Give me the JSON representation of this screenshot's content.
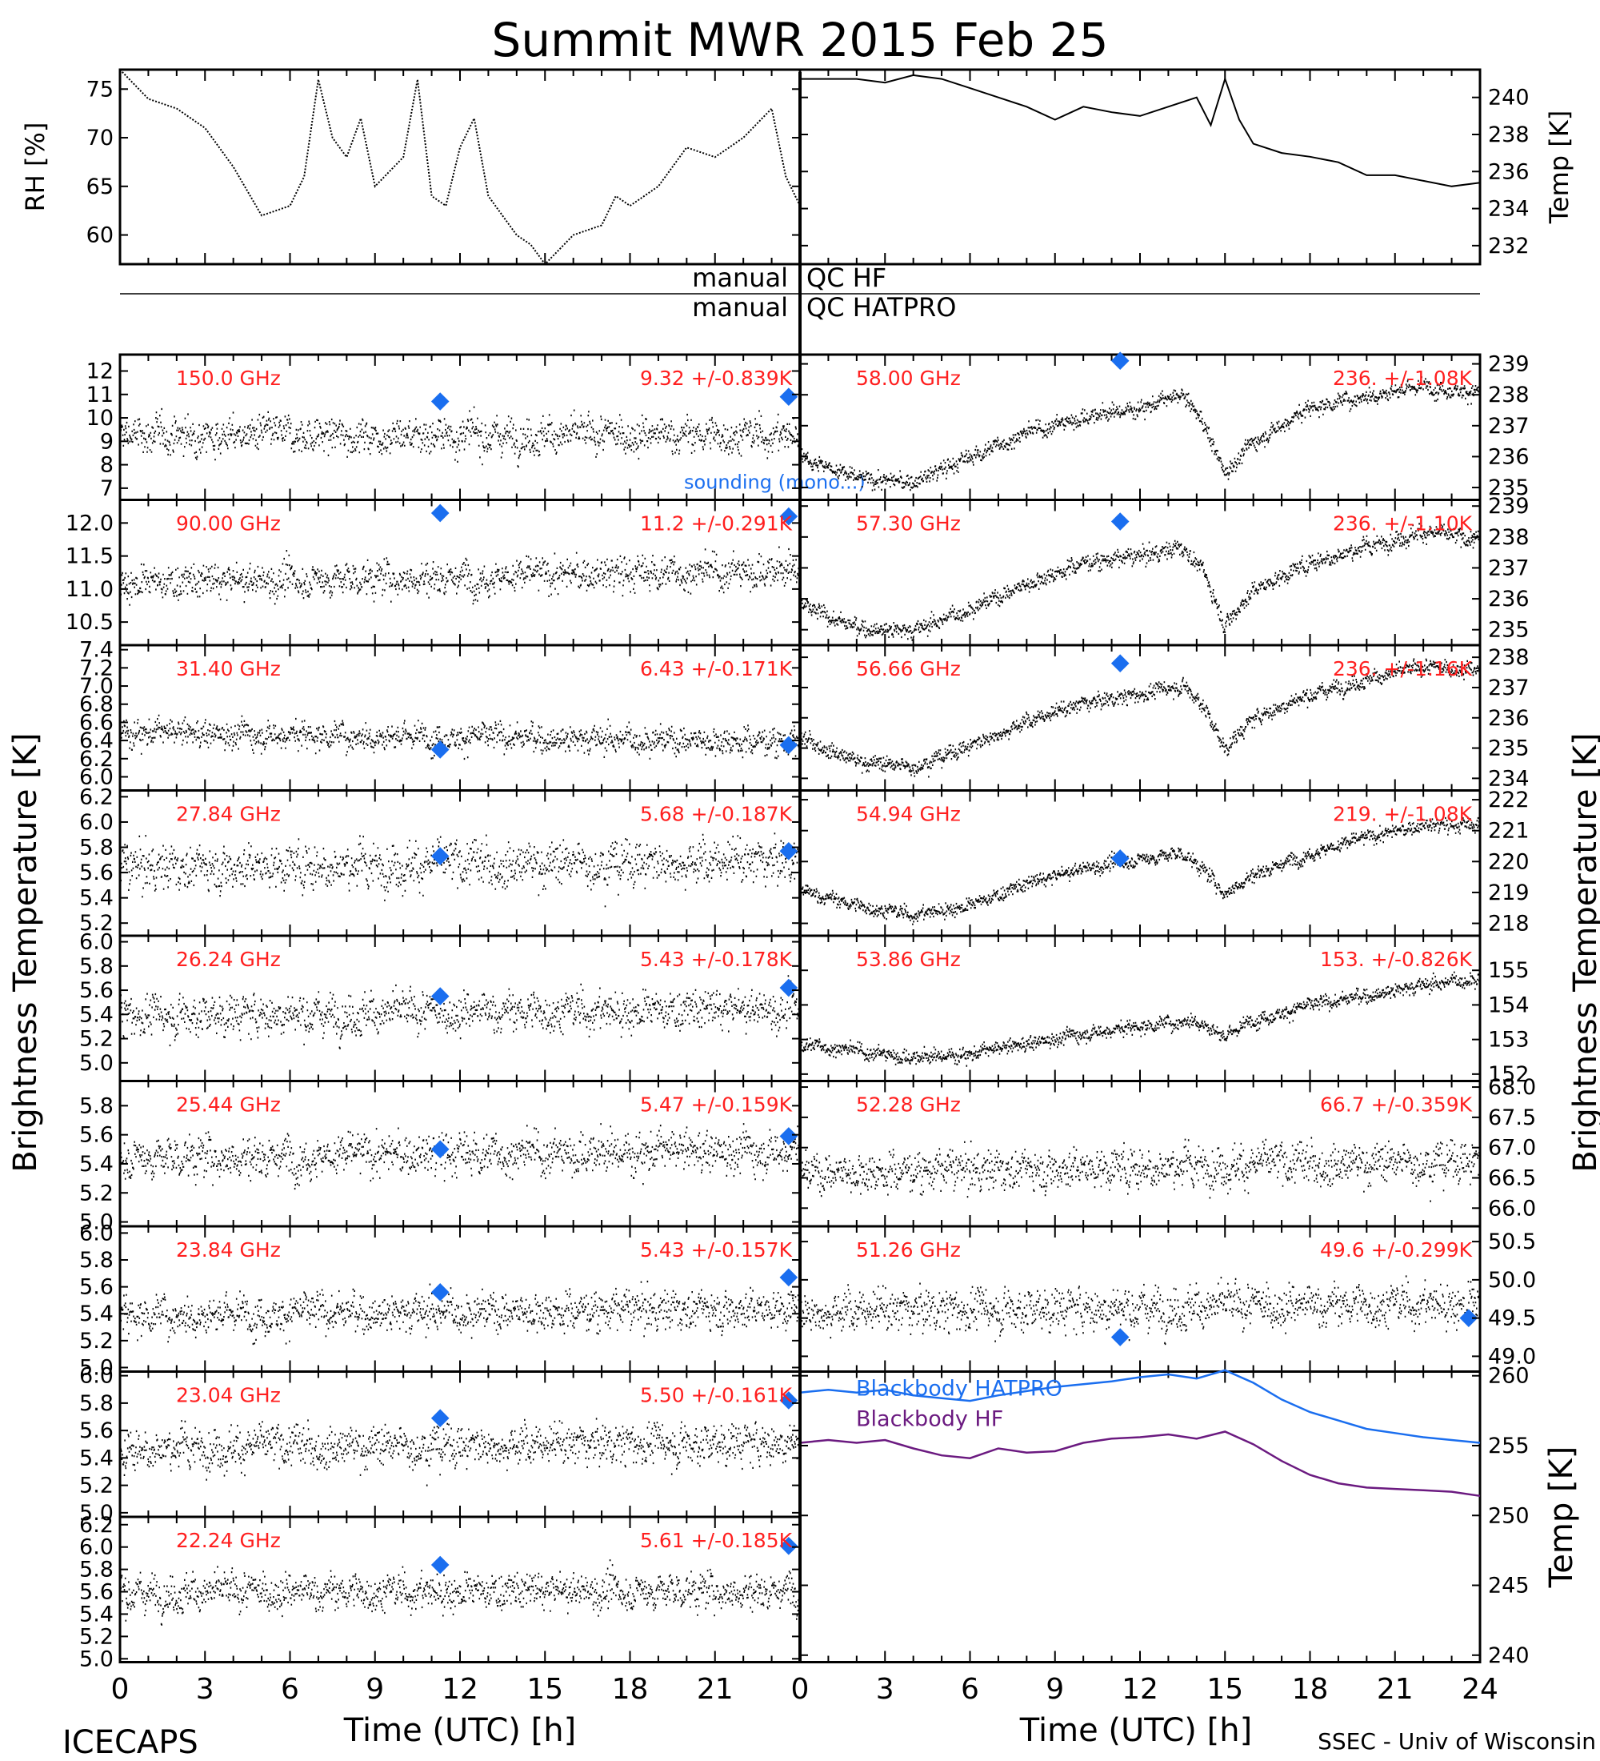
{
  "title": "Summit MWR 2015 Feb 25",
  "footer": {
    "left": "ICECAPS",
    "right": "SSEC - Univ of Wisconsin"
  },
  "colors": {
    "trace": "#000000",
    "label": "#ff1f1f",
    "sounding": "#1a6eef",
    "bb_hatpro": "#1a6eef",
    "bb_hf": "#6b1a80"
  },
  "qc": {
    "left1": "manual",
    "right1": "QC HF",
    "left2": "manual",
    "right2": "QC HATPRO"
  },
  "chart_data": [
    {
      "id": "met_rh",
      "type": "line",
      "ylabel": "RH [%]",
      "xlim": [
        0,
        24
      ],
      "ylim": [
        57,
        77
      ],
      "yticks": [
        "60",
        "65",
        "70",
        "75"
      ],
      "x": [
        0,
        1,
        2,
        3,
        4,
        5,
        6,
        6.5,
        7,
        7.5,
        8,
        8.5,
        9,
        10,
        10.5,
        11,
        11.5,
        12,
        12.5,
        13,
        13.5,
        14,
        14.5,
        15,
        16,
        17,
        17.5,
        18,
        19,
        20,
        21,
        22,
        23,
        23.5,
        24
      ],
      "values": [
        77,
        74,
        73,
        71,
        67,
        62,
        63,
        66,
        76,
        70,
        68,
        72,
        65,
        68,
        76,
        64,
        63,
        69,
        72,
        64,
        62,
        60,
        59,
        57,
        60,
        61,
        64,
        63,
        65,
        69,
        68,
        70,
        73,
        66,
        63
      ]
    },
    {
      "id": "met_temp",
      "type": "line",
      "ylabel": "Temp [K]",
      "xlim": [
        0,
        24
      ],
      "ylim": [
        231,
        241.5
      ],
      "yticks": [
        "232",
        "234",
        "236",
        "238",
        "240"
      ],
      "x": [
        0,
        1,
        2,
        3,
        4,
        5,
        6,
        7,
        8,
        9,
        10,
        11,
        12,
        13,
        14,
        14.5,
        15,
        15.5,
        16,
        17,
        18,
        19,
        20,
        21,
        22,
        23,
        24
      ],
      "values": [
        241,
        241,
        241,
        240.8,
        241.2,
        241,
        240.5,
        240,
        239.5,
        238.8,
        239.5,
        239.2,
        239,
        239.5,
        240,
        238.5,
        241,
        238.8,
        237.5,
        237,
        236.8,
        236.5,
        235.8,
        235.8,
        235.5,
        235.2,
        235.4
      ]
    },
    {
      "id": "p150",
      "type": "scatter",
      "freq": "150.0 GHz",
      "stat": "9.32 +/-0.839K",
      "ylim": [
        6.5,
        12.7
      ],
      "yticks": [
        "7",
        "8",
        "9",
        "10",
        "11",
        "12"
      ],
      "mean": [
        9.3,
        9.3
      ],
      "noise": 0.84,
      "sounding": [
        [
          11.3,
          10.7
        ],
        [
          23.6,
          10.9
        ]
      ],
      "extra": "sounding (mono...)"
    },
    {
      "id": "p90",
      "type": "scatter",
      "freq": "90.00 GHz",
      "stat": "11.2 +/-0.291K",
      "ylim": [
        10.15,
        12.35
      ],
      "yticks": [
        "10.5",
        "11.0",
        "11.5",
        "12.0"
      ],
      "mean": [
        11.1,
        11.3
      ],
      "noise": 0.29,
      "sounding": [
        [
          11.3,
          12.15
        ],
        [
          23.6,
          12.1
        ]
      ]
    },
    {
      "id": "p31",
      "type": "scatter",
      "freq": "31.40 GHz",
      "stat": "6.43 +/-0.171K",
      "ylim": [
        5.85,
        7.45
      ],
      "yticks": [
        "6.0",
        "6.2",
        "6.4",
        "6.6",
        "6.8",
        "7.0",
        "7.2",
        "7.4"
      ],
      "mean": [
        6.5,
        6.4
      ],
      "noise": 0.17,
      "sounding": [
        [
          11.3,
          6.3
        ],
        [
          23.6,
          6.35
        ]
      ]
    },
    {
      "id": "p2784",
      "type": "scatter",
      "freq": "27.84 GHz",
      "stat": "5.68 +/-0.187K",
      "ylim": [
        5.1,
        6.25
      ],
      "yticks": [
        "5.2",
        "5.4",
        "5.6",
        "5.8",
        "6.0",
        "6.2"
      ],
      "mean": [
        5.65,
        5.7
      ],
      "noise": 0.19,
      "sounding": [
        [
          11.3,
          5.73
        ],
        [
          23.6,
          5.77
        ]
      ]
    },
    {
      "id": "p2624",
      "type": "scatter",
      "freq": "26.24 GHz",
      "stat": "5.43 +/-0.178K",
      "ylim": [
        4.85,
        6.05
      ],
      "yticks": [
        "5.0",
        "5.2",
        "5.4",
        "5.6",
        "5.8",
        "6.0"
      ],
      "mean": [
        5.4,
        5.45
      ],
      "noise": 0.18,
      "sounding": [
        [
          11.3,
          5.55
        ],
        [
          23.6,
          5.62
        ]
      ]
    },
    {
      "id": "p2544",
      "type": "scatter",
      "freq": "25.44 GHz",
      "stat": "5.47 +/-0.159K",
      "ylim": [
        4.97,
        5.97
      ],
      "yticks": [
        "5.0",
        "5.2",
        "5.4",
        "5.6",
        "5.8"
      ],
      "mean": [
        5.45,
        5.5
      ],
      "noise": 0.16,
      "sounding": [
        [
          11.3,
          5.5
        ],
        [
          23.6,
          5.59
        ]
      ]
    },
    {
      "id": "p2384",
      "type": "scatter",
      "freq": "23.84 GHz",
      "stat": "5.43 +/-0.157K",
      "ylim": [
        4.97,
        6.05
      ],
      "yticks": [
        "5.0",
        "5.2",
        "5.4",
        "5.6",
        "5.8",
        "6.0"
      ],
      "mean": [
        5.4,
        5.45
      ],
      "noise": 0.16,
      "sounding": [
        [
          11.3,
          5.56
        ],
        [
          23.6,
          5.67
        ]
      ]
    },
    {
      "id": "p2304",
      "type": "scatter",
      "freq": "23.04 GHz",
      "stat": "5.50 +/-0.161K",
      "ylim": [
        4.97,
        6.03
      ],
      "yticks": [
        "5.0",
        "5.2",
        "5.4",
        "5.6",
        "5.8",
        "6.0"
      ],
      "mean": [
        5.48,
        5.52
      ],
      "noise": 0.16,
      "sounding": [
        [
          11.3,
          5.69
        ],
        [
          23.6,
          5.82
        ]
      ]
    },
    {
      "id": "p2224",
      "type": "scatter",
      "freq": "22.24 GHz",
      "stat": "5.61 +/-0.185K",
      "ylim": [
        4.97,
        6.27
      ],
      "yticks": [
        "5.0",
        "5.2",
        "5.4",
        "5.6",
        "5.8",
        "6.0",
        "6.2"
      ],
      "mean": [
        5.6,
        5.62
      ],
      "noise": 0.18,
      "sounding": [
        [
          11.3,
          5.84
        ],
        [
          23.6,
          6.01
        ]
      ]
    },
    {
      "id": "p58",
      "type": "scatter",
      "freq": "58.00 GHz",
      "stat": "236. +/-1.08K",
      "ylim": [
        234.6,
        239.3
      ],
      "yticks": [
        "235",
        "236",
        "237",
        "238",
        "239"
      ],
      "trend": [
        [
          0,
          236.1
        ],
        [
          2,
          235.3
        ],
        [
          4,
          235.2
        ],
        [
          6,
          236
        ],
        [
          8,
          236.8
        ],
        [
          10,
          237.3
        ],
        [
          12,
          237.6
        ],
        [
          13.5,
          238
        ],
        [
          14.2,
          237.2
        ],
        [
          15,
          235.5
        ],
        [
          16,
          236.5
        ],
        [
          18,
          237.6
        ],
        [
          20,
          238
        ],
        [
          22,
          238.3
        ],
        [
          24,
          238.1
        ]
      ],
      "noise": 0.3,
      "sounding": [
        [
          11.3,
          239.1
        ]
      ]
    },
    {
      "id": "p573",
      "type": "scatter",
      "freq": "57.30 GHz",
      "stat": "236. +/-1.10K",
      "ylim": [
        234.5,
        239.2
      ],
      "yticks": [
        "235",
        "236",
        "237",
        "238",
        "239"
      ],
      "trend": [
        [
          0,
          235.8
        ],
        [
          2,
          235.1
        ],
        [
          4,
          235
        ],
        [
          6,
          235.7
        ],
        [
          8,
          236.5
        ],
        [
          10,
          237.2
        ],
        [
          12,
          237.4
        ],
        [
          13.5,
          237.7
        ],
        [
          14.2,
          237
        ],
        [
          15,
          235.2
        ],
        [
          16,
          236.3
        ],
        [
          18,
          237.2
        ],
        [
          20,
          237.7
        ],
        [
          22,
          238.2
        ],
        [
          24,
          237.9
        ]
      ],
      "noise": 0.3,
      "sounding": [
        [
          11.3,
          238.5
        ]
      ]
    },
    {
      "id": "p5666",
      "type": "scatter",
      "freq": "56.66 GHz",
      "stat": "236. +/-1.16K",
      "ylim": [
        233.6,
        238.4
      ],
      "yticks": [
        "234",
        "235",
        "236",
        "237",
        "238"
      ],
      "trend": [
        [
          0,
          235.4
        ],
        [
          2,
          234.6
        ],
        [
          4,
          234.4
        ],
        [
          6,
          235.1
        ],
        [
          8,
          235.9
        ],
        [
          10,
          236.5
        ],
        [
          12,
          236.8
        ],
        [
          13.5,
          237.1
        ],
        [
          14.2,
          236.5
        ],
        [
          15,
          235
        ],
        [
          16,
          236
        ],
        [
          18,
          236.8
        ],
        [
          20,
          237.3
        ],
        [
          22,
          237.7
        ],
        [
          24,
          237.6
        ]
      ],
      "noise": 0.28,
      "sounding": [
        [
          11.3,
          237.8
        ]
      ]
    },
    {
      "id": "p5494",
      "type": "scatter",
      "freq": "54.94 GHz",
      "stat": "219. +/-1.08K",
      "ylim": [
        217.6,
        222.3
      ],
      "yticks": [
        "218",
        "219",
        "220",
        "221",
        "222"
      ],
      "trend": [
        [
          0,
          219.1
        ],
        [
          2,
          218.6
        ],
        [
          4,
          218.3
        ],
        [
          6,
          218.6
        ],
        [
          8,
          219.3
        ],
        [
          10,
          219.8
        ],
        [
          12,
          220.1
        ],
        [
          13.5,
          220.3
        ],
        [
          14.2,
          219.8
        ],
        [
          15,
          219
        ],
        [
          16,
          219.6
        ],
        [
          18,
          220.3
        ],
        [
          20,
          220.8
        ],
        [
          22,
          221.2
        ],
        [
          24,
          221.2
        ]
      ],
      "noise": 0.26,
      "sounding": [
        [
          11.3,
          220.1
        ]
      ]
    },
    {
      "id": "p5386",
      "type": "scatter",
      "freq": "53.86 GHz",
      "stat": "153. +/-0.826K",
      "ylim": [
        151.8,
        156
      ],
      "yticks": [
        "152",
        "153",
        "154",
        "155"
      ],
      "trend": [
        [
          0,
          152.9
        ],
        [
          2,
          152.7
        ],
        [
          4,
          152.5
        ],
        [
          6,
          152.6
        ],
        [
          8,
          152.9
        ],
        [
          10,
          153.2
        ],
        [
          12,
          153.4
        ],
        [
          14,
          153.6
        ],
        [
          15,
          153.1
        ],
        [
          16,
          153.6
        ],
        [
          18,
          154
        ],
        [
          20,
          154.3
        ],
        [
          22,
          154.6
        ],
        [
          24,
          154.8
        ]
      ],
      "noise": 0.24,
      "sounding": []
    },
    {
      "id": "p5228",
      "type": "scatter",
      "freq": "52.28 GHz",
      "stat": "66.7 +/-0.359K",
      "ylim": [
        65.7,
        68.1
      ],
      "yticks": [
        "66.0",
        "66.5",
        "67.0",
        "67.5",
        "68.0"
      ],
      "mean": [
        66.6,
        66.8
      ],
      "noise": 0.36,
      "sounding": []
    },
    {
      "id": "p5126",
      "type": "scatter",
      "freq": "51.26 GHz",
      "stat": "49.6 +/-0.299K",
      "ylim": [
        48.8,
        50.7
      ],
      "yticks": [
        "49.0",
        "49.5",
        "50.0",
        "50.5"
      ],
      "mean": [
        49.6,
        49.7
      ],
      "noise": 0.3,
      "sounding": [
        [
          11.3,
          49.25
        ],
        [
          23.6,
          49.5
        ]
      ]
    },
    {
      "id": "blackbody",
      "type": "line",
      "ylabel": "Temp [K]",
      "ylim": [
        239.5,
        260.3
      ],
      "yticks": [
        "240",
        "245",
        "250",
        "255",
        "260"
      ],
      "xlim": [
        0,
        24
      ],
      "series": [
        {
          "name": "Blackbody HATPRO",
          "x": [
            0,
            1,
            2,
            3,
            4,
            5,
            6,
            7,
            8,
            9,
            10,
            11,
            12,
            13,
            14,
            15,
            16,
            17,
            18,
            19,
            20,
            21,
            22,
            23,
            24
          ],
          "values": [
            258.8,
            259,
            258.8,
            259,
            258.6,
            258.4,
            258.2,
            258.6,
            258.9,
            259.2,
            259.4,
            259.6,
            259.9,
            260.1,
            259.8,
            260.4,
            259.5,
            258.3,
            257.4,
            256.8,
            256.2,
            255.9,
            255.6,
            255.4,
            255.2
          ]
        },
        {
          "name": "Blackbody HF",
          "x": [
            0,
            1,
            2,
            3,
            4,
            5,
            6,
            7,
            8,
            9,
            10,
            11,
            12,
            13,
            14,
            15,
            16,
            17,
            18,
            19,
            20,
            21,
            22,
            23,
            24
          ],
          "values": [
            255.2,
            255.4,
            255.2,
            255.4,
            254.8,
            254.3,
            254.1,
            254.8,
            254.5,
            254.6,
            255.2,
            255.5,
            255.6,
            255.8,
            255.5,
            256,
            255.1,
            253.9,
            252.9,
            252.3,
            252,
            251.9,
            251.8,
            251.7,
            251.4
          ]
        }
      ]
    }
  ],
  "xaxis": {
    "label": "Time (UTC) [h]",
    "ticks": [
      "0",
      "3",
      "6",
      "9",
      "12",
      "15",
      "18",
      "21",
      "24"
    ]
  },
  "yaxis": {
    "left_label": "Brightness Temperature [K]",
    "right_label": "Brightness Temperature [K]"
  }
}
